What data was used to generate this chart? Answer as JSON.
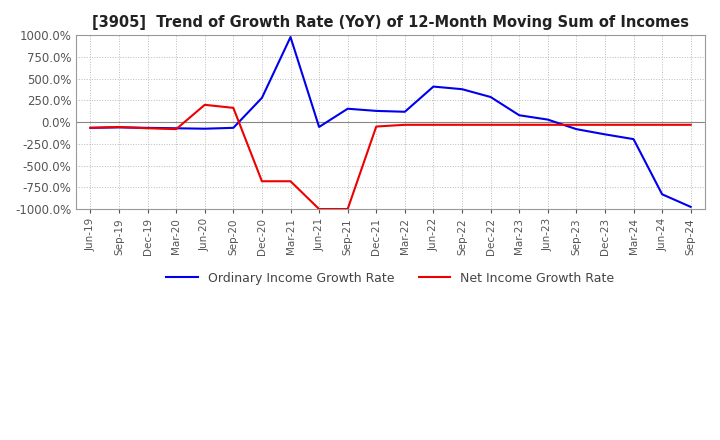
{
  "title": "[3905]  Trend of Growth Rate (YoY) of 12-Month Moving Sum of Incomes",
  "ylim": [
    -1000,
    1000
  ],
  "yticks": [
    1000,
    750,
    500,
    250,
    0,
    -250,
    -500,
    -750,
    -1000
  ],
  "background_color": "#ffffff",
  "grid_color": "#bbbbbb",
  "ordinary_color": "#0000ee",
  "net_color": "#ee0000",
  "ordinary_label": "Ordinary Income Growth Rate",
  "net_label": "Net Income Growth Rate",
  "dates": [
    "Jun-19",
    "Sep-19",
    "Dec-19",
    "Mar-20",
    "Jun-20",
    "Sep-20",
    "Dec-20",
    "Mar-21",
    "Jun-21",
    "Sep-21",
    "Dec-21",
    "Mar-22",
    "Jun-22",
    "Sep-22",
    "Dec-22",
    "Mar-23",
    "Jun-23",
    "Sep-23",
    "Dec-23",
    "Mar-24",
    "Jun-24",
    "Sep-24"
  ],
  "ordinary_values": [
    -65,
    -60,
    -65,
    -70,
    -75,
    -65,
    280,
    980,
    -55,
    155,
    130,
    120,
    410,
    380,
    290,
    80,
    30,
    -80,
    -140,
    -195,
    -830,
    -975
  ],
  "net_values": [
    -65,
    -55,
    -70,
    -80,
    200,
    165,
    -680,
    -680,
    -1000,
    -1000,
    -50,
    -30,
    -30,
    -30,
    -30,
    -30,
    -30,
    -30,
    -30,
    -30,
    -30,
    -30
  ]
}
